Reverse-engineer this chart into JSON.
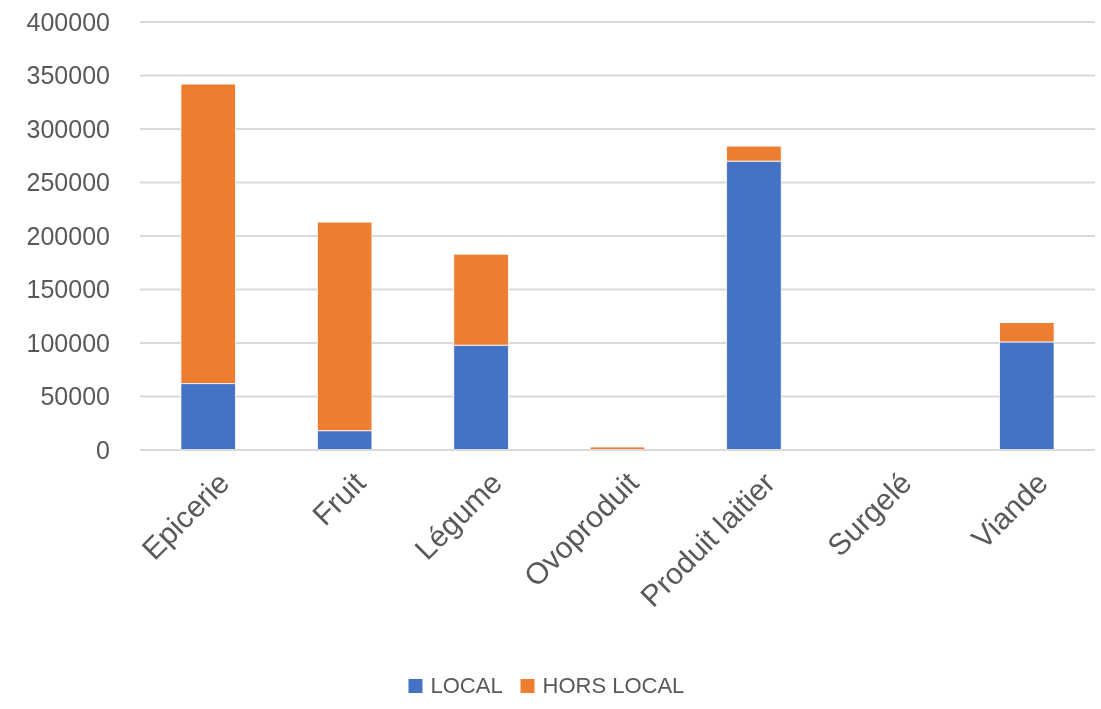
{
  "chart_data": {
    "type": "bar",
    "stacked": true,
    "categories": [
      "Epicerie",
      "Fruit",
      "Légume",
      "Ovoproduit",
      "Produit laitier",
      "Surgelé",
      "Viande"
    ],
    "series": [
      {
        "name": "LOCAL",
        "color": "#4472c4",
        "values": [
          62000,
          18000,
          98000,
          0,
          270000,
          0,
          101000
        ]
      },
      {
        "name": "HORS LOCAL",
        "color": "#ed7d31",
        "values": [
          280000,
          195000,
          85000,
          2800,
          14000,
          0,
          18000
        ]
      }
    ],
    "ylim": [
      0,
      400000
    ],
    "yticks": [
      0,
      50000,
      100000,
      150000,
      200000,
      250000,
      300000,
      350000,
      400000
    ],
    "grid": "y",
    "legend": "bottom"
  }
}
